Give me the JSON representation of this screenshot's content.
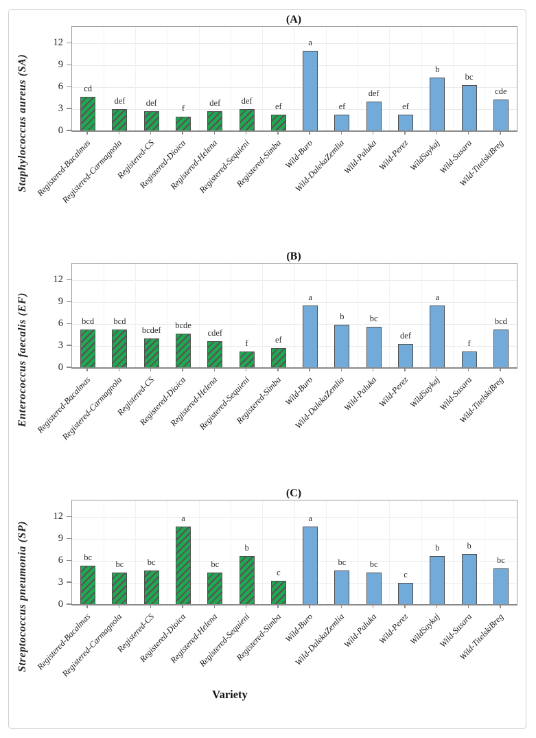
{
  "figure": {
    "xlabel": "Variety",
    "categories": [
      "Registered-Bacalmas",
      "Registered-Carmagnola",
      "Registered-CS",
      "Registered-Dioica",
      "Registered-Helena",
      "Registered-Sequieni",
      "Registered-Simba",
      "Wild-Buro",
      "Wild-DalekaZemlia",
      "Wild-Paluka",
      "Wild-Perez",
      "WildSaykaj",
      "Wild-Susara",
      "Wild-TitelskiBreg"
    ],
    "groups": [
      "registered",
      "registered",
      "registered",
      "registered",
      "registered",
      "registered",
      "registered",
      "wild",
      "wild",
      "wild",
      "wild",
      "wild",
      "wild",
      "wild"
    ],
    "colors": {
      "registered_fill": "#1FA850",
      "registered_hatch": "#5A4F58",
      "wild_fill": "#72AAD9",
      "bar_border": "#4E4E4E"
    }
  },
  "chart_data": [
    {
      "type": "bar",
      "title": "(A)",
      "ylabel": "Staphylococcus aureus (SA)",
      "categories": [
        "Registered-Bacalmas",
        "Registered-Carmagnola",
        "Registered-CS",
        "Registered-Dioica",
        "Registered-Helena",
        "Registered-Sequieni",
        "Registered-Simba",
        "Wild-Buro",
        "Wild-DalekaZemlia",
        "Wild-Paluka",
        "Wild-Perez",
        "WildSaykaj",
        "Wild-Susara",
        "Wild-TitelskiBreg"
      ],
      "values": [
        4.7,
        3.0,
        2.7,
        2.0,
        2.7,
        3.0,
        2.3,
        11.0,
        2.3,
        4.0,
        2.3,
        7.3,
        6.3,
        4.3
      ],
      "sig_letters": [
        "cd",
        "def",
        "def",
        "f",
        "def",
        "def",
        "ef",
        "a",
        "ef",
        "def",
        "ef",
        "b",
        "bc",
        "cde"
      ],
      "ylim": [
        0,
        14.3
      ],
      "yticks": [
        0,
        3,
        6,
        9,
        12
      ],
      "grid": "on",
      "legend": "none"
    },
    {
      "type": "bar",
      "title": "(B)",
      "ylabel": "Enterococcus faecalis (EF)",
      "categories": [
        "Registered-Bacalmas",
        "Registered-Carmagnola",
        "Registered-CS",
        "Registered-Dioica",
        "Registered-Helena",
        "Registered-Sequieni",
        "Registered-Simba",
        "Wild-Buro",
        "Wild-DalekaZemlia",
        "Wild-Paluka",
        "Wild-Perez",
        "WildSaykaj",
        "Wild-Susara",
        "Wild-TitelskiBreg"
      ],
      "values": [
        5.3,
        5.3,
        4.0,
        4.7,
        3.7,
        2.3,
        2.7,
        8.6,
        5.9,
        5.6,
        3.3,
        8.6,
        2.3,
        5.3
      ],
      "sig_letters": [
        "bcd",
        "bcd",
        "bcdef",
        "bcde",
        "cdef",
        "f",
        "ef",
        "a",
        "b",
        "bc",
        "def",
        "a",
        "f",
        "bcd"
      ],
      "ylim": [
        0,
        14.3
      ],
      "yticks": [
        0,
        3,
        6,
        9,
        12
      ],
      "grid": "on",
      "legend": "none"
    },
    {
      "type": "bar",
      "title": "(C)",
      "ylabel": "Streptococcus pneumonia (SP)",
      "categories": [
        "Registered-Bacalmas",
        "Registered-Carmagnola",
        "Registered-CS",
        "Registered-Dioica",
        "Registered-Helena",
        "Registered-Sequieni",
        "Registered-Simba",
        "Wild-Buro",
        "Wild-DalekaZemlia",
        "Wild-Paluka",
        "Wild-Perez",
        "WildSaykaj",
        "Wild-Susara",
        "Wild-TitelskiBreg"
      ],
      "values": [
        5.4,
        4.4,
        4.7,
        10.7,
        4.4,
        6.7,
        3.3,
        10.7,
        4.7,
        4.4,
        3.0,
        6.7,
        7.0,
        5.0
      ],
      "sig_letters": [
        "bc",
        "bc",
        "bc",
        "a",
        "bc",
        "b",
        "c",
        "a",
        "bc",
        "bc",
        "c",
        "b",
        "b",
        "bc"
      ],
      "ylim": [
        0,
        14.3
      ],
      "yticks": [
        0,
        3,
        6,
        9,
        12
      ],
      "grid": "on",
      "legend": "none"
    }
  ]
}
